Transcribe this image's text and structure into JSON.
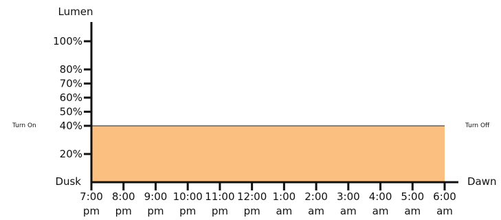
{
  "chart_data": {
    "type": "area",
    "title": "",
    "ylabel": "Lumen",
    "xlabel": "",
    "x_start_label": "Dusk",
    "x_end_label": "Dawn",
    "categories": [
      [
        "7:00",
        "pm"
      ],
      [
        "8:00",
        "pm"
      ],
      [
        "9:00",
        "pm"
      ],
      [
        "10:00",
        "pm"
      ],
      [
        "11:00",
        "pm"
      ],
      [
        "12:00",
        "pm"
      ],
      [
        "1:00",
        "am"
      ],
      [
        "2:00",
        "am"
      ],
      [
        "3:00",
        "am"
      ],
      [
        "4:00",
        "am"
      ],
      [
        "5:00",
        "am"
      ],
      [
        "6:00",
        "am"
      ]
    ],
    "y_ticks": [
      {
        "value": 20,
        "label": "20%"
      },
      {
        "value": 40,
        "label": "40%"
      },
      {
        "value": 50,
        "label": "50%"
      },
      {
        "value": 60,
        "label": "60%"
      },
      {
        "value": 70,
        "label": "70%"
      },
      {
        "value": 80,
        "label": "80%"
      },
      {
        "value": 100,
        "label": "100%"
      }
    ],
    "ylim": [
      0,
      110
    ],
    "series": [
      {
        "values": [
          40,
          40,
          40,
          40,
          40,
          40,
          40,
          40,
          40,
          40,
          40,
          40
        ],
        "color": "#fbbf80"
      }
    ],
    "annotations": {
      "start": "Turn On",
      "end": "Turn Off"
    },
    "grid": false
  }
}
